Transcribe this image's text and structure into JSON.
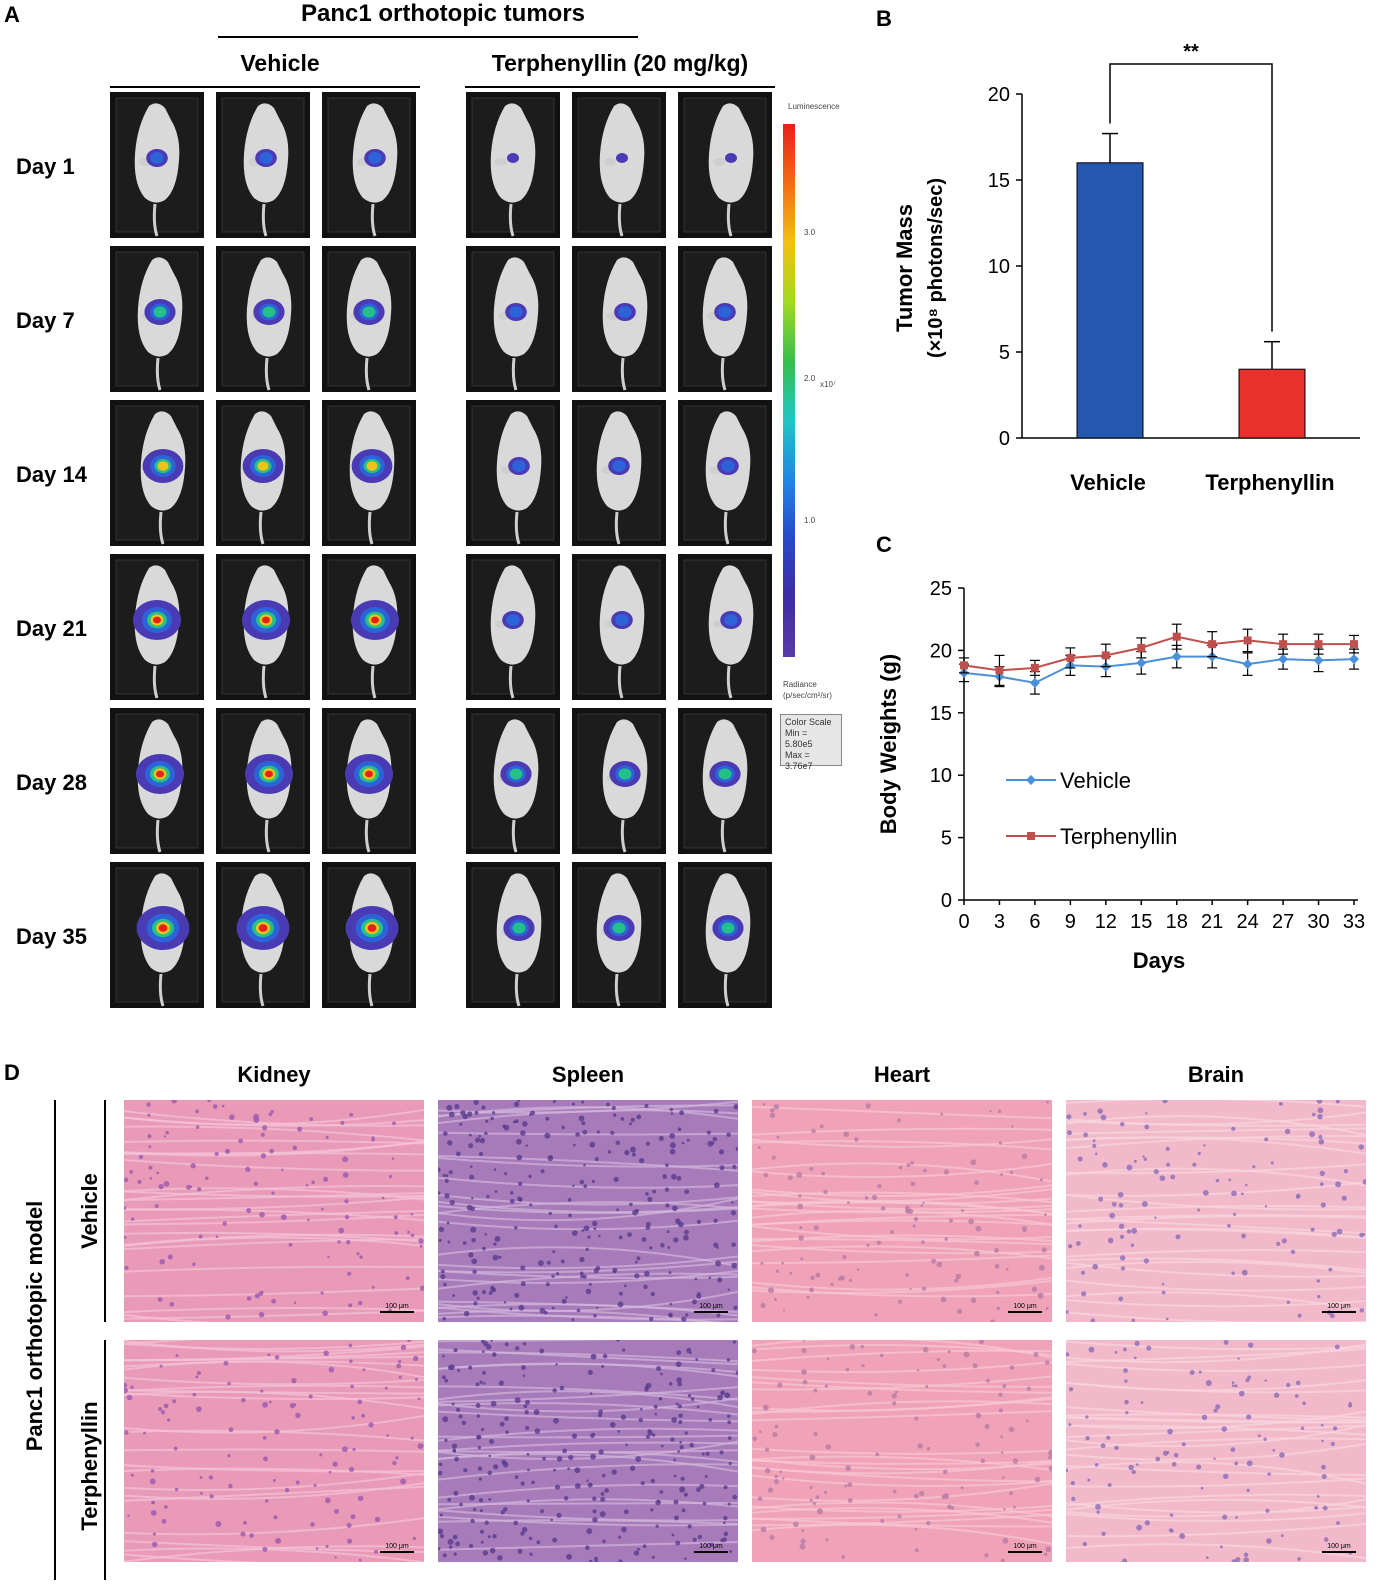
{
  "panel_a": {
    "label": "A",
    "title": "Panc1 orthotopic tumors",
    "group_vehicle": "Vehicle",
    "group_treat": "Terphenyllin (20 mg/kg)",
    "days": [
      "Day 1",
      "Day 7",
      "Day 14",
      "Day 21",
      "Day 28",
      "Day 35"
    ],
    "scale": {
      "top": "Luminescence",
      "ticks": [
        "3.0",
        "2.0",
        "1.0"
      ],
      "unit": "x10⁷",
      "radiance": "Radiance",
      "radiance_unit": "(p/sec/cm²/sr)",
      "box": [
        "Color Scale",
        "Min = 5.80e5",
        "Max = 3.76e7"
      ]
    }
  },
  "panel_b": {
    "label": "B",
    "chart_data": {
      "type": "bar",
      "categories": [
        "Vehicle",
        "Terphenyllin"
      ],
      "values": [
        16.0,
        4.0
      ],
      "errors": [
        1.7,
        1.6
      ],
      "colors": [
        "#2457ad",
        "#e8312a"
      ],
      "ylabel_line1": "Tumor Mass",
      "ylabel_line2": "(×10⁸ photons/sec)",
      "ylim": [
        0,
        20
      ],
      "yticks": [
        "0",
        "5",
        "10",
        "15",
        "20"
      ],
      "significance": "**"
    }
  },
  "panel_c": {
    "label": "C",
    "chart_data": {
      "type": "line",
      "x": [
        0,
        3,
        6,
        9,
        12,
        15,
        18,
        21,
        24,
        27,
        30,
        33
      ],
      "xticks": [
        "0",
        "3",
        "6",
        "9",
        "12",
        "15",
        "18",
        "21",
        "24",
        "27",
        "30",
        "33"
      ],
      "series": [
        {
          "name": "Vehicle",
          "color": "#4a90d9",
          "marker": "diamond",
          "values": [
            18.2,
            17.9,
            17.4,
            18.8,
            18.7,
            19.0,
            19.5,
            19.5,
            18.9,
            19.3,
            19.2,
            19.3
          ],
          "errors": [
            0.7,
            0.8,
            0.9,
            0.8,
            0.8,
            0.9,
            0.9,
            0.9,
            0.9,
            0.8,
            0.9,
            0.8
          ]
        },
        {
          "name": "Terphenyllin",
          "color": "#c0504d",
          "marker": "square",
          "values": [
            18.8,
            18.4,
            18.6,
            19.4,
            19.6,
            20.2,
            21.1,
            20.5,
            20.8,
            20.5,
            20.5,
            20.5
          ],
          "errors": [
            0.6,
            1.2,
            0.6,
            0.8,
            0.9,
            0.8,
            1.0,
            1.0,
            0.9,
            0.8,
            0.8,
            0.7
          ]
        }
      ],
      "xlabel": "Days",
      "ylabel": "Body Weights (g)",
      "ylim": [
        0,
        25
      ],
      "yticks": [
        "0",
        "5",
        "10",
        "15",
        "20",
        "25"
      ]
    }
  },
  "panel_d": {
    "label": "D",
    "organs": [
      "Kidney",
      "Spleen",
      "Heart",
      "Brain"
    ],
    "model_label": "Panc1 orthotopic model",
    "rows": [
      "Vehicle",
      "Terphenyllin"
    ],
    "scalebar": "100 μm"
  }
}
